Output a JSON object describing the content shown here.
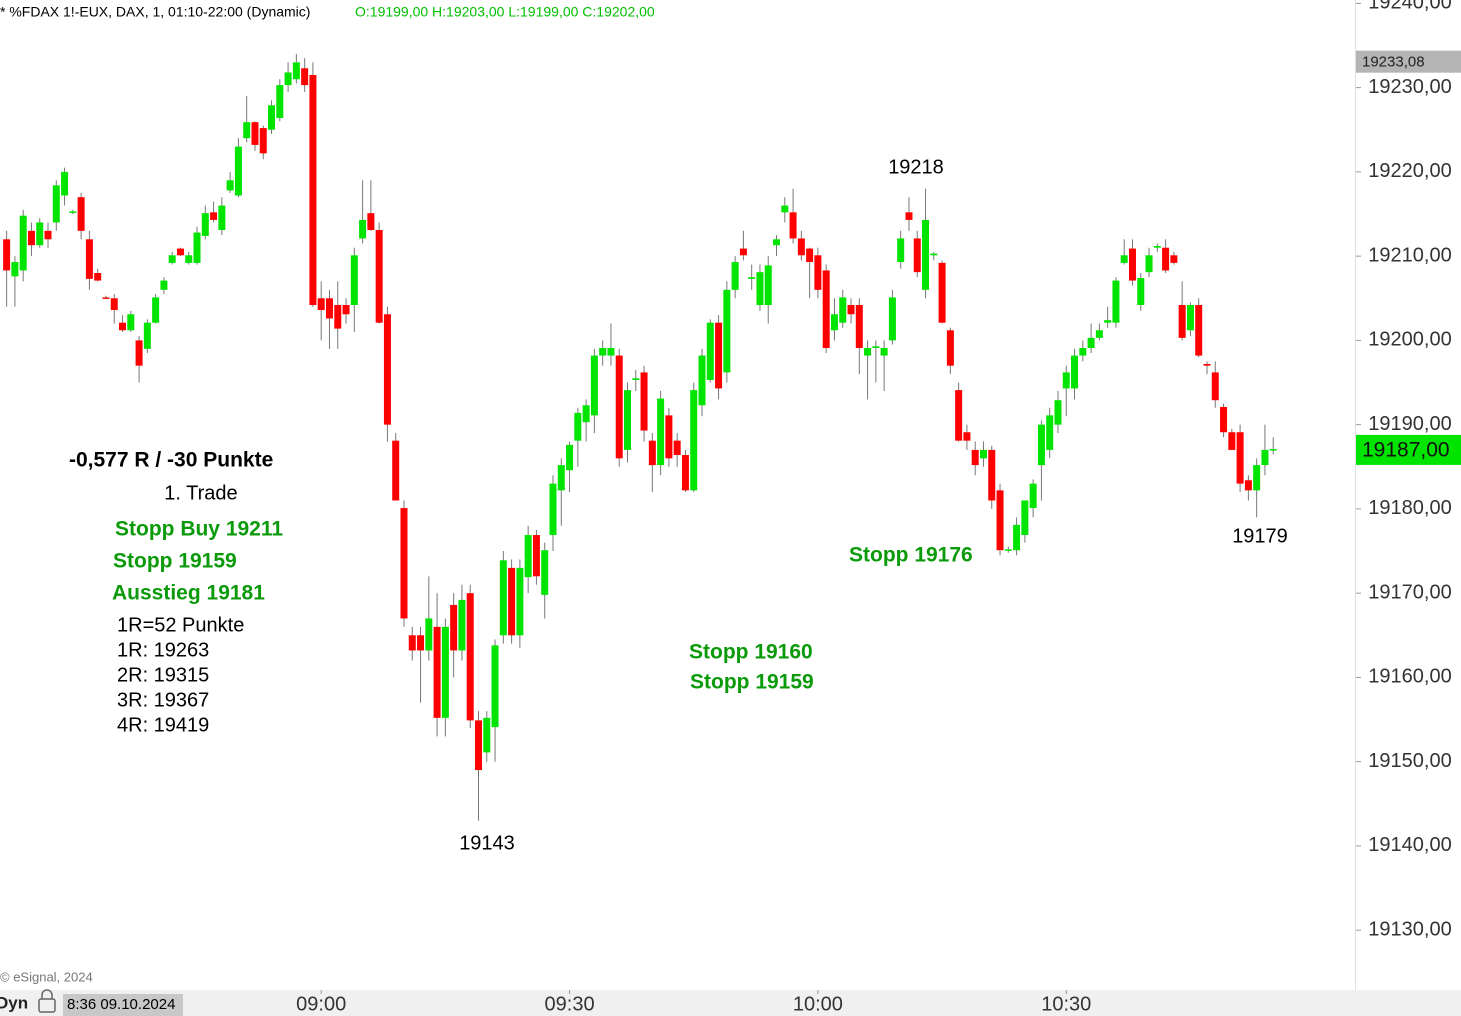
{
  "chart_data": {
    "type": "candlestick",
    "title": "* %FDAX 1!-EUX, DAX, 1, 01:10-22:00 (Dynamic)",
    "ohlc_label": "O:19199,00 H:19203,00 L:19199,00 C:19202,00",
    "copyright": "© eSignal, 2024",
    "status_mode": "Dyn",
    "status_time": "8:36 09.10.2024",
    "up_color": "#00e400",
    "down_color": "#ff0000",
    "ylim": [
      19122.9,
      19240.4
    ],
    "yticks": [
      {
        "value": 19130,
        "label": "19130,00"
      },
      {
        "value": 19140,
        "label": "19140,00"
      },
      {
        "value": 19150,
        "label": "19150,00"
      },
      {
        "value": 19160,
        "label": "19160,00"
      },
      {
        "value": 19170,
        "label": "19170,00"
      },
      {
        "value": 19180,
        "label": "19180,00"
      },
      {
        "value": 19190,
        "label": "19190,00"
      },
      {
        "value": 19200,
        "label": "19200,00"
      },
      {
        "value": 19210,
        "label": "19210,00"
      },
      {
        "value": 19220,
        "label": "19220,00"
      },
      {
        "value": 19230,
        "label": "19230,00"
      },
      {
        "value": 19240,
        "label": "19240,00"
      }
    ],
    "xlim": [
      501.2,
      665
    ],
    "xticks": [
      {
        "value": 540,
        "label": "09:00"
      },
      {
        "value": 570,
        "label": "09:30"
      },
      {
        "value": 600,
        "label": "10:00"
      },
      {
        "value": 630,
        "label": "10:30"
      }
    ],
    "last_price": {
      "value": 19187,
      "label": "19187,00"
    },
    "marker_price": {
      "value": 19233.08,
      "label": "19233,08"
    },
    "annotations": [
      "-0,577 R / -30 Punkte",
      "1. Trade",
      "Stopp Buy 19211",
      "Stopp 19159",
      "Ausstieg 19181",
      "1R=52 Punkte",
      "1R: 19263",
      "2R: 19315",
      "3R: 19367",
      "4R: 19419",
      "19143",
      "19218",
      "19179",
      "Stopp 19176",
      "Stopp 19160",
      "Stopp 19159"
    ],
    "candles": [
      [
        19212,
        19213,
        19204,
        19208.3
      ],
      [
        19207.6,
        19210,
        19204,
        19209.3
      ],
      [
        19208.3,
        19215.5,
        19207,
        19214.8
      ],
      [
        19213,
        19214,
        19210,
        19211.3
      ],
      [
        19211.3,
        19214.5,
        19211,
        19214
      ],
      [
        19213,
        19214,
        19211,
        19212
      ],
      [
        19214,
        19219,
        19213,
        19218.4
      ],
      [
        19217.2,
        19220.5,
        19216,
        19220
      ],
      [
        19215.2,
        19215.5,
        19215,
        19215.3
      ],
      [
        19217,
        19217.5,
        19212,
        19213
      ],
      [
        19212,
        19213,
        19206,
        19207.3
      ],
      [
        19208,
        19208.5,
        19207,
        19207.1
      ],
      [
        19205.1,
        19205.3,
        19205,
        19205
      ],
      [
        19205,
        19205.5,
        19202,
        19203.6
      ],
      [
        19202.1,
        19203,
        19201,
        19201.2
      ],
      [
        19201.2,
        19203.5,
        19201,
        19203.1
      ],
      [
        19200,
        19200.5,
        19195,
        19197
      ],
      [
        19199,
        19202.5,
        19198.5,
        19202.1
      ],
      [
        19202.1,
        19205.5,
        19202,
        19205.1
      ],
      [
        19206,
        19207.5,
        19205.5,
        19207.1
      ],
      [
        19209.2,
        19210.5,
        19209,
        19210.1
      ],
      [
        19210.9,
        19211,
        19210,
        19210.1
      ],
      [
        19209.2,
        19210.5,
        19209,
        19210.1
      ],
      [
        19209.2,
        19213.5,
        19209,
        19212.8
      ],
      [
        19212.4,
        19216,
        19212,
        19215.1
      ],
      [
        19215.2,
        19216.5,
        19214,
        19214.3
      ],
      [
        19213.1,
        19217,
        19212.5,
        19216
      ],
      [
        19217.8,
        19220,
        19217.5,
        19219
      ],
      [
        19217.2,
        19224,
        19217,
        19223
      ],
      [
        19224,
        19229,
        19223.5,
        19225.9
      ],
      [
        19225.9,
        19226,
        19222.5,
        19223.2
      ],
      [
        19225.2,
        19225.5,
        19221.5,
        19222.2
      ],
      [
        19225,
        19228.5,
        19224.5,
        19227.9
      ],
      [
        19226.4,
        19231,
        19226,
        19230.3
      ],
      [
        19230.3,
        19233,
        19229.5,
        19231.8
      ],
      [
        19231,
        19234,
        19230.5,
        19233
      ],
      [
        19232.3,
        19233.5,
        19229.5,
        19230.3
      ],
      [
        19231.5,
        19233,
        19204,
        19204.2
      ],
      [
        19205,
        19207,
        19200,
        19203.6
      ],
      [
        19205,
        19206,
        19199,
        19202.6
      ],
      [
        19204.2,
        19207,
        19199,
        19201.4
      ],
      [
        19204.2,
        19205,
        19202,
        19203.1
      ],
      [
        19204.2,
        19211,
        19201,
        19210.1
      ],
      [
        19212.1,
        19219,
        19211.5,
        19214.3
      ],
      [
        19215.1,
        19219,
        19213,
        19213.1
      ],
      [
        19213.1,
        19214,
        19202,
        19202.1
      ],
      [
        19203.1,
        19204,
        19188,
        19190
      ],
      [
        19188.1,
        19189,
        19181,
        19181
      ],
      [
        19180.1,
        19181,
        19166,
        19167
      ],
      [
        19165,
        19166,
        19162,
        19163.2
      ],
      [
        19165,
        19166,
        19157,
        19163.2
      ],
      [
        19163.2,
        19172,
        19162,
        19167
      ],
      [
        19166,
        19170,
        19153,
        19155.2
      ],
      [
        19155.2,
        19167,
        19153,
        19166
      ],
      [
        19168.6,
        19170,
        19160,
        19163.2
      ],
      [
        19163.2,
        19171,
        19162,
        19169.2
      ],
      [
        19170,
        19171,
        19154,
        19154.9
      ],
      [
        19154.9,
        19156,
        19143,
        19149
      ],
      [
        19151.1,
        19156,
        19150,
        19155.2
      ],
      [
        19154.1,
        19164.5,
        19150,
        19163.8
      ],
      [
        19165,
        19175,
        19164,
        19173.9
      ],
      [
        19173,
        19174,
        19164,
        19165
      ],
      [
        19165,
        19174,
        19163.5,
        19173
      ],
      [
        19171.9,
        19178,
        19170,
        19176.9
      ],
      [
        19176.9,
        19177.5,
        19171,
        19172
      ],
      [
        19169.8,
        19176,
        19167,
        19175.1
      ],
      [
        19176.9,
        19184,
        19175,
        19183
      ],
      [
        19182.2,
        19186,
        19178,
        19185.2
      ],
      [
        19184.6,
        19188,
        19182,
        19187.6
      ],
      [
        19188.1,
        19192,
        19185,
        19191.4
      ],
      [
        19190.3,
        19193,
        19188,
        19192.3
      ],
      [
        19191.1,
        19199,
        19189,
        19198.2
      ],
      [
        19198.2,
        19200,
        19197,
        19199.1
      ],
      [
        19198.2,
        19202,
        19197,
        19199.1
      ],
      [
        19198.2,
        19199,
        19185,
        19186
      ],
      [
        19187,
        19195,
        19185.5,
        19194.1
      ],
      [
        19195.3,
        19196.5,
        19194,
        19195.5
      ],
      [
        19196.2,
        19197,
        19188,
        19189.3
      ],
      [
        19188.1,
        19189,
        19182,
        19185.2
      ],
      [
        19185.2,
        19194,
        19184,
        19193.1
      ],
      [
        19191.1,
        19192,
        19185,
        19186
      ],
      [
        19188.1,
        19189,
        19185,
        19186.4
      ],
      [
        19186.4,
        19187,
        19182,
        19182.2
      ],
      [
        19182.2,
        19195,
        19182,
        19194.1
      ],
      [
        19192.3,
        19199,
        19191,
        19198.2
      ],
      [
        19195.3,
        19202.5,
        19195,
        19202.1
      ],
      [
        19202.1,
        19203,
        19193,
        19194.3
      ],
      [
        19196.2,
        19207,
        19195,
        19206
      ],
      [
        19206,
        19210,
        19205,
        19209.3
      ],
      [
        19210.9,
        19213,
        19209.5,
        19210.1
      ],
      [
        19207.3,
        19209,
        19206,
        19207.5
      ],
      [
        19204.2,
        19209,
        19203.5,
        19208.1
      ],
      [
        19204.2,
        19210,
        19202,
        19208.9
      ],
      [
        19211.3,
        19212.5,
        19210,
        19212
      ],
      [
        19215.2,
        19217,
        19214,
        19216
      ],
      [
        19215.2,
        19218,
        19211.5,
        19212.1
      ],
      [
        19212.1,
        19213,
        19209.5,
        19210.1
      ],
      [
        19210.9,
        19211,
        19205,
        19209.3
      ],
      [
        19210.1,
        19211,
        19205,
        19206
      ],
      [
        19208.3,
        19209,
        19198.5,
        19199.1
      ],
      [
        19201.2,
        19205,
        19200,
        19203.1
      ],
      [
        19202.1,
        19206,
        19201.5,
        19205.1
      ],
      [
        19204.2,
        19205,
        19202,
        19203.1
      ],
      [
        19204.2,
        19205,
        19196,
        19199.1
      ],
      [
        19198.2,
        19200,
        19193,
        19199.1
      ],
      [
        19199.1,
        19200,
        19195,
        19199.3
      ],
      [
        19198.2,
        19200,
        19194,
        19199.1
      ],
      [
        19200,
        19206,
        19199.5,
        19205.1
      ],
      [
        19209.3,
        19213,
        19208.5,
        19212.1
      ],
      [
        19215.2,
        19217,
        19213,
        19214.3
      ],
      [
        19212.1,
        19213,
        19207.5,
        19208.1
      ],
      [
        19206,
        19218,
        19205,
        19214.3
      ],
      [
        19210.1,
        19210.5,
        19209.5,
        19210.3
      ],
      [
        19209.2,
        19209.5,
        19202,
        19202.1
      ],
      [
        19201.2,
        19201.5,
        19196,
        19197
      ],
      [
        19194.1,
        19195,
        19188,
        19188.1
      ],
      [
        19189.1,
        19190,
        19187,
        19188.1
      ],
      [
        19187,
        19188,
        19184,
        19185.2
      ],
      [
        19186,
        19188,
        19185,
        19187
      ],
      [
        19187,
        19187.5,
        19180,
        19181
      ],
      [
        19182.2,
        19183,
        19174.5,
        19175.1
      ],
      [
        19175.1,
        19175.5,
        19174.8,
        19175.2
      ],
      [
        19175.1,
        19179,
        19174.5,
        19178.1
      ],
      [
        19176.9,
        19181,
        19176,
        19181
      ],
      [
        19180.1,
        19183.5,
        19179,
        19183
      ],
      [
        19185.2,
        19190.5,
        19181,
        19190
      ],
      [
        19187,
        19192,
        19186,
        19191.1
      ],
      [
        19190,
        19194,
        19189,
        19192.9
      ],
      [
        19194.3,
        19197,
        19191,
        19196.2
      ],
      [
        19194.3,
        19199,
        19193,
        19198.2
      ],
      [
        19198.2,
        19200,
        19197.5,
        19199.1
      ],
      [
        19199.1,
        19202,
        19198.5,
        19200.3
      ],
      [
        19200.3,
        19202,
        19200,
        19201.2
      ],
      [
        19202.1,
        19204,
        19201.5,
        19202.4
      ],
      [
        19202.1,
        19207.5,
        19201.5,
        19207.1
      ],
      [
        19209.2,
        19212,
        19209,
        19210.1
      ],
      [
        19210.9,
        19212,
        19206.5,
        19207.1
      ],
      [
        19204.2,
        19208,
        19203.5,
        19207.4
      ],
      [
        19208.1,
        19211,
        19207.5,
        19210.1
      ],
      [
        19211,
        19211.5,
        19210.5,
        19211.2
      ],
      [
        19211,
        19212,
        19208,
        19208.3
      ],
      [
        19210.1,
        19210.5,
        19209,
        19209.2
      ],
      [
        19204.2,
        19207,
        19200,
        19200.3
      ],
      [
        19201.2,
        19204.5,
        19200.5,
        19204.2
      ],
      [
        19204.2,
        19205,
        19198,
        19198.2
      ],
      [
        19197.2,
        19197.5,
        19196,
        19197
      ],
      [
        19196.2,
        19197.5,
        19192,
        19192.9
      ],
      [
        19192.1,
        19192.5,
        19188.5,
        19189.1
      ],
      [
        19189.1,
        19189.5,
        19187,
        19187
      ],
      [
        19189.1,
        19190,
        19182,
        19183
      ],
      [
        19183.4,
        19184,
        19181,
        19182.2
      ],
      [
        19182.2,
        19186,
        19179,
        19185.2
      ],
      [
        19185.2,
        19190,
        19184,
        19187
      ],
      [
        19187,
        19188.5,
        19186.5,
        19187.1
      ]
    ],
    "x": [
      502,
      503,
      504,
      505,
      506,
      507,
      508,
      509,
      510,
      511,
      512,
      513,
      514,
      515,
      516,
      517,
      518,
      519,
      520,
      521,
      522,
      523,
      524,
      525,
      526,
      527,
      528,
      529,
      530,
      531,
      532,
      533,
      534,
      535,
      536,
      537,
      538,
      539,
      540,
      541,
      542,
      543,
      544,
      545,
      546,
      547,
      548,
      549,
      550,
      551,
      552,
      553,
      554,
      555,
      556,
      557,
      558,
      559,
      560,
      561,
      562,
      563,
      564,
      565,
      566,
      567,
      568,
      569,
      570,
      571,
      572,
      573,
      574,
      575,
      576,
      577,
      578,
      579,
      580,
      581,
      582,
      583,
      584,
      585,
      586,
      587,
      588,
      589,
      590,
      591,
      592,
      593,
      594,
      595,
      596,
      597,
      598,
      599,
      600,
      601,
      602,
      603,
      604,
      605,
      606,
      607,
      608,
      609,
      610,
      611,
      612,
      613,
      614,
      615,
      616,
      617,
      618,
      619,
      620,
      621,
      622,
      623,
      624,
      625,
      626,
      627,
      628,
      629,
      630,
      631,
      632,
      633,
      634,
      635,
      636,
      637,
      638,
      639,
      640,
      641,
      642,
      643,
      644,
      645,
      646,
      647,
      648,
      649,
      650,
      651,
      652,
      653,
      654,
      655
    ]
  }
}
